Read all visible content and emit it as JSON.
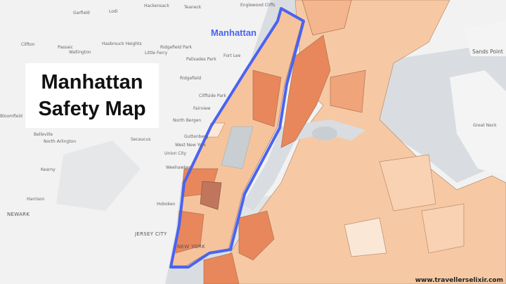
{
  "title": {
    "line1": "Manhattan",
    "line2": "Safety Map"
  },
  "highlight_label": "Manhattan",
  "watermark": "www.travellerselixir.com",
  "colors": {
    "outline": "#4a63f0",
    "land": "#f2f2f2",
    "water": "#d9dde1",
    "risk_low": "#fbe7d6",
    "risk_mid": "#f6c49c",
    "risk_high": "#e8875c",
    "risk_highest": "#c0765c",
    "park": "#c9ced2"
  },
  "labels": {
    "hackensack": "Hackensack",
    "teaneck": "Teaneck",
    "englewood_cliffs": "Englewood Cliffs",
    "garfield": "Garfield",
    "lodi": "Lodi",
    "clifton": "Clifton",
    "passaic": "Passaic",
    "wallington": "Wallington",
    "hasbrouck_heights": "Hasbrouck Heights",
    "ridgefield_park": "Ridgefield Park",
    "little_ferry": "Little Ferry",
    "palisades_park": "Palisades Park",
    "fort_lee": "Fort Lee",
    "ridgefield": "Ridgefield",
    "cliffside_park": "Cliffside Park",
    "fairview": "Fairview",
    "north_bergen": "North Bergen",
    "bloomfield": "Bloomfield",
    "belleville": "Belleville",
    "north_arlington": "North Arlington",
    "secaucus": "Secaucus",
    "guttenberg": "Guttenberg",
    "west_new_york": "West New York",
    "union_city": "Union City",
    "weehawken": "Weehawken",
    "kearny": "Kearny",
    "harrison": "Harrison",
    "newark": "NEWARK",
    "hoboken": "Hoboken",
    "jersey_city": "JERSEY CITY",
    "new_york": "NEW YORK",
    "great_neck": "Great Neck",
    "sands_point": "Sands Point"
  }
}
